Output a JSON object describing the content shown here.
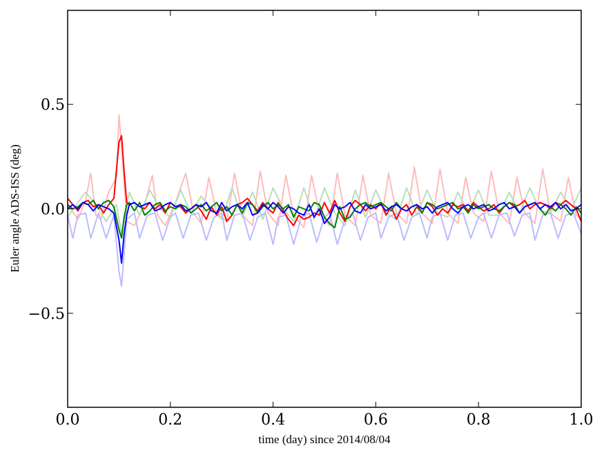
{
  "chart_data": {
    "type": "line",
    "title": "",
    "xlabel": "time (day) since 2014/08/04",
    "ylabel": "Euler angle ADS-ISS (deg)",
    "xlim": [
      0.0,
      1.0
    ],
    "ylim": [
      -0.95,
      0.95
    ],
    "grid": false,
    "legend": "none",
    "xticks": [
      0.0,
      0.2,
      0.4,
      0.6,
      0.8,
      1.0
    ],
    "xtick_labels": [
      "0.0",
      "0.2",
      "0.4",
      "0.6",
      "0.8",
      "1.0"
    ],
    "yticks": [
      0.5,
      0.0,
      -0.5
    ],
    "ytick_labels": [
      "0.5",
      "0.0",
      "−0.5"
    ],
    "series": [
      {
        "color": "#ffbbbb",
        "x": [
          0,
          0.02,
          0.035,
          0.045,
          0.055,
          0.065,
          0.08,
          0.095,
          0.1,
          0.105,
          0.115,
          0.13,
          0.15,
          0.165,
          0.175,
          0.19,
          0.21,
          0.23,
          0.245,
          0.26,
          0.275,
          0.29,
          0.31,
          0.325,
          0.34,
          0.36,
          0.375,
          0.39,
          0.41,
          0.425,
          0.44,
          0.46,
          0.475,
          0.49,
          0.51,
          0.525,
          0.54,
          0.56,
          0.575,
          0.59,
          0.61,
          0.625,
          0.64,
          0.66,
          0.675,
          0.69,
          0.71,
          0.725,
          0.74,
          0.76,
          0.775,
          0.79,
          0.81,
          0.825,
          0.84,
          0.86,
          0.875,
          0.89,
          0.91,
          0.925,
          0.94,
          0.96,
          0.975,
          0.99,
          1.0
        ],
        "y": [
          0.02,
          -0.05,
          0.04,
          0.17,
          -0.03,
          -0.05,
          0.08,
          0.15,
          0.45,
          0.3,
          -0.06,
          -0.08,
          0.02,
          0.16,
          -0.03,
          -0.08,
          0.03,
          0.17,
          -0.02,
          -0.07,
          0.15,
          -0.02,
          -0.06,
          0.17,
          -0.03,
          -0.08,
          0.18,
          -0.02,
          -0.08,
          0.16,
          -0.03,
          -0.09,
          0.16,
          -0.02,
          -0.08,
          0.17,
          -0.03,
          -0.08,
          0.16,
          -0.03,
          -0.07,
          0.17,
          -0.02,
          -0.07,
          0.2,
          -0.02,
          -0.07,
          0.19,
          -0.02,
          -0.07,
          0.15,
          -0.02,
          -0.06,
          0.18,
          -0.02,
          -0.07,
          0.15,
          -0.02,
          -0.07,
          0.19,
          -0.02,
          -0.06,
          0.15,
          -0.03,
          -0.05
        ]
      },
      {
        "color": "#bbddbb",
        "x": [
          0,
          0.02,
          0.035,
          0.055,
          0.075,
          0.095,
          0.105,
          0.12,
          0.14,
          0.16,
          0.18,
          0.2,
          0.22,
          0.24,
          0.26,
          0.28,
          0.3,
          0.32,
          0.34,
          0.36,
          0.38,
          0.4,
          0.42,
          0.44,
          0.46,
          0.48,
          0.5,
          0.52,
          0.54,
          0.56,
          0.58,
          0.6,
          0.62,
          0.64,
          0.66,
          0.68,
          0.7,
          0.72,
          0.74,
          0.76,
          0.78,
          0.8,
          0.82,
          0.84,
          0.86,
          0.88,
          0.9,
          0.92,
          0.94,
          0.96,
          0.98,
          1.0
        ],
        "y": [
          -0.04,
          0.03,
          0.08,
          0.02,
          -0.06,
          0.02,
          -0.12,
          0.08,
          -0.03,
          0.09,
          0.0,
          -0.04,
          0.09,
          -0.02,
          0.06,
          0.0,
          -0.05,
          0.1,
          -0.04,
          0.08,
          -0.05,
          0.1,
          0.0,
          -0.06,
          0.1,
          -0.05,
          0.1,
          -0.02,
          -0.08,
          0.09,
          -0.04,
          0.09,
          -0.02,
          -0.05,
          0.1,
          -0.03,
          0.09,
          -0.02,
          -0.04,
          0.08,
          -0.02,
          0.09,
          -0.03,
          -0.03,
          0.08,
          -0.02,
          0.1,
          -0.01,
          -0.02,
          0.08,
          -0.01,
          0.1
        ]
      },
      {
        "color": "#bbbbff",
        "x": [
          0,
          0.01,
          0.02,
          0.035,
          0.045,
          0.06,
          0.075,
          0.09,
          0.1,
          0.105,
          0.115,
          0.13,
          0.14,
          0.155,
          0.17,
          0.185,
          0.2,
          0.21,
          0.225,
          0.24,
          0.255,
          0.27,
          0.285,
          0.3,
          0.31,
          0.325,
          0.34,
          0.355,
          0.37,
          0.385,
          0.4,
          0.41,
          0.425,
          0.44,
          0.455,
          0.47,
          0.485,
          0.5,
          0.51,
          0.525,
          0.54,
          0.555,
          0.57,
          0.585,
          0.6,
          0.61,
          0.625,
          0.64,
          0.655,
          0.67,
          0.685,
          0.7,
          0.71,
          0.725,
          0.74,
          0.755,
          0.77,
          0.785,
          0.8,
          0.81,
          0.825,
          0.84,
          0.855,
          0.87,
          0.885,
          0.9,
          0.91,
          0.925,
          0.94,
          0.955,
          0.97,
          0.985,
          1.0
        ],
        "y": [
          -0.03,
          -0.14,
          -0.03,
          -0.02,
          -0.14,
          -0.02,
          -0.14,
          -0.03,
          -0.3,
          -0.37,
          -0.05,
          -0.02,
          -0.14,
          -0.03,
          -0.02,
          -0.15,
          -0.04,
          -0.02,
          -0.14,
          -0.03,
          -0.02,
          -0.15,
          -0.04,
          -0.02,
          -0.15,
          -0.03,
          -0.02,
          -0.15,
          -0.04,
          -0.02,
          -0.17,
          -0.04,
          -0.03,
          -0.17,
          -0.04,
          -0.02,
          -0.16,
          -0.04,
          -0.02,
          -0.17,
          -0.05,
          -0.02,
          -0.15,
          -0.04,
          -0.02,
          -0.14,
          -0.04,
          -0.02,
          -0.15,
          -0.04,
          -0.02,
          -0.14,
          -0.04,
          -0.02,
          -0.15,
          -0.03,
          -0.02,
          -0.14,
          -0.04,
          -0.02,
          -0.14,
          -0.03,
          -0.02,
          -0.13,
          -0.03,
          -0.02,
          -0.15,
          -0.03,
          -0.02,
          -0.14,
          -0.03,
          -0.02,
          -0.12
        ]
      },
      {
        "color": "#ff0000",
        "x": [
          0,
          0.01,
          0.02,
          0.03,
          0.04,
          0.05,
          0.06,
          0.07,
          0.08,
          0.09,
          0.1,
          0.105,
          0.11,
          0.115,
          0.12,
          0.13,
          0.14,
          0.15,
          0.16,
          0.17,
          0.18,
          0.19,
          0.2,
          0.21,
          0.22,
          0.23,
          0.24,
          0.25,
          0.26,
          0.27,
          0.28,
          0.29,
          0.3,
          0.31,
          0.32,
          0.33,
          0.34,
          0.35,
          0.36,
          0.37,
          0.38,
          0.39,
          0.4,
          0.41,
          0.42,
          0.43,
          0.44,
          0.45,
          0.46,
          0.47,
          0.48,
          0.49,
          0.5,
          0.51,
          0.52,
          0.53,
          0.54,
          0.55,
          0.56,
          0.57,
          0.58,
          0.59,
          0.6,
          0.61,
          0.62,
          0.63,
          0.64,
          0.65,
          0.66,
          0.67,
          0.68,
          0.69,
          0.7,
          0.71,
          0.72,
          0.73,
          0.74,
          0.75,
          0.76,
          0.77,
          0.78,
          0.79,
          0.8,
          0.81,
          0.82,
          0.83,
          0.84,
          0.85,
          0.86,
          0.87,
          0.88,
          0.89,
          0.9,
          0.91,
          0.92,
          0.93,
          0.94,
          0.95,
          0.96,
          0.97,
          0.98,
          0.99,
          1.0
        ],
        "y": [
          0.05,
          0.02,
          -0.01,
          0.03,
          0.04,
          0.01,
          0.02,
          -0.02,
          0.02,
          0.05,
          0.32,
          0.35,
          0.18,
          0.03,
          0.02,
          0.03,
          0.01,
          0.0,
          0.03,
          0.0,
          0.02,
          -0.02,
          0.03,
          0.01,
          0.01,
          -0.02,
          0.0,
          0.02,
          -0.01,
          -0.05,
          0.01,
          -0.03,
          0.01,
          -0.06,
          -0.03,
          0.02,
          0.03,
          0.05,
          0.02,
          -0.01,
          0.03,
          0.0,
          -0.02,
          0.03,
          -0.01,
          -0.05,
          -0.08,
          -0.03,
          -0.05,
          -0.04,
          -0.02,
          -0.03,
          0.03,
          -0.02,
          0.04,
          -0.02,
          -0.06,
          0.01,
          0.04,
          0.02,
          -0.01,
          0.02,
          0.0,
          0.03,
          -0.03,
          0.01,
          -0.05,
          0.0,
          0.02,
          -0.03,
          0.01,
          -0.02,
          0.03,
          0.01,
          -0.03,
          0.0,
          -0.02,
          0.02,
          0.01,
          0.02,
          -0.01,
          0.03,
          0.01,
          -0.01,
          0.0,
          0.02,
          -0.02,
          0.01,
          0.03,
          0.01,
          0.02,
          0.04,
          0.0,
          0.02,
          0.03,
          0.02,
          0.0,
          0.03,
          0.02,
          0.04,
          0.02,
          0.0,
          -0.06
        ]
      },
      {
        "color": "#008000",
        "x": [
          0,
          0.01,
          0.02,
          0.03,
          0.04,
          0.05,
          0.06,
          0.07,
          0.08,
          0.09,
          0.1,
          0.105,
          0.11,
          0.115,
          0.12,
          0.13,
          0.14,
          0.15,
          0.16,
          0.17,
          0.18,
          0.19,
          0.2,
          0.21,
          0.22,
          0.23,
          0.24,
          0.25,
          0.26,
          0.27,
          0.28,
          0.29,
          0.3,
          0.31,
          0.32,
          0.33,
          0.34,
          0.35,
          0.36,
          0.37,
          0.38,
          0.39,
          0.4,
          0.41,
          0.42,
          0.43,
          0.44,
          0.45,
          0.46,
          0.47,
          0.48,
          0.49,
          0.5,
          0.51,
          0.52,
          0.53,
          0.54,
          0.55,
          0.56,
          0.57,
          0.58,
          0.59,
          0.6,
          0.61,
          0.62,
          0.63,
          0.64,
          0.65,
          0.66,
          0.67,
          0.68,
          0.69,
          0.7,
          0.71,
          0.72,
          0.73,
          0.74,
          0.75,
          0.76,
          0.77,
          0.78,
          0.79,
          0.8,
          0.81,
          0.82,
          0.83,
          0.84,
          0.85,
          0.86,
          0.87,
          0.88,
          0.89,
          0.9,
          0.91,
          0.92,
          0.93,
          0.94,
          0.95,
          0.96,
          0.97,
          0.98,
          0.99,
          1.0
        ],
        "y": [
          0.02,
          0.0,
          0.01,
          0.03,
          0.02,
          0.04,
          0.0,
          0.03,
          0.04,
          0.01,
          -0.1,
          -0.14,
          -0.04,
          0.02,
          0.03,
          -0.01,
          0.03,
          -0.03,
          -0.01,
          0.02,
          0.03,
          -0.01,
          0.01,
          0.0,
          0.02,
          0.01,
          -0.02,
          0.0,
          0.02,
          -0.01,
          0.01,
          0.03,
          -0.01,
          0.01,
          -0.03,
          0.02,
          -0.02,
          0.03,
          0.02,
          -0.02,
          0.01,
          0.03,
          0.0,
          0.02,
          0.0,
          0.02,
          -0.04,
          0.01,
          0.0,
          -0.01,
          0.03,
          0.02,
          -0.04,
          -0.07,
          -0.09,
          0.01,
          -0.05,
          -0.04,
          0.0,
          0.02,
          0.03,
          0.01,
          0.02,
          0.03,
          0.01,
          -0.01,
          0.03,
          0.0,
          -0.01,
          0.01,
          0.02,
          -0.02,
          0.03,
          0.02,
          0.0,
          0.01,
          0.02,
          0.03,
          0.0,
          0.01,
          -0.02,
          0.02,
          0.0,
          0.01,
          0.02,
          0.0,
          -0.01,
          0.01,
          0.03,
          0.02,
          -0.02,
          0.01,
          0.02,
          0.03,
          0.0,
          -0.03,
          0.01,
          -0.01,
          0.02,
          0.0,
          -0.03,
          0.01,
          -0.02
        ]
      },
      {
        "color": "#0000ff",
        "x": [
          0,
          0.01,
          0.02,
          0.03,
          0.04,
          0.05,
          0.06,
          0.07,
          0.08,
          0.09,
          0.1,
          0.105,
          0.11,
          0.115,
          0.12,
          0.13,
          0.14,
          0.15,
          0.16,
          0.17,
          0.18,
          0.19,
          0.2,
          0.21,
          0.22,
          0.23,
          0.24,
          0.25,
          0.26,
          0.27,
          0.28,
          0.29,
          0.3,
          0.31,
          0.32,
          0.33,
          0.34,
          0.35,
          0.36,
          0.37,
          0.38,
          0.39,
          0.4,
          0.41,
          0.42,
          0.43,
          0.44,
          0.45,
          0.46,
          0.47,
          0.48,
          0.49,
          0.5,
          0.51,
          0.52,
          0.53,
          0.54,
          0.55,
          0.56,
          0.57,
          0.58,
          0.59,
          0.6,
          0.61,
          0.62,
          0.63,
          0.64,
          0.65,
          0.66,
          0.67,
          0.68,
          0.69,
          0.7,
          0.71,
          0.72,
          0.73,
          0.74,
          0.75,
          0.76,
          0.77,
          0.78,
          0.79,
          0.8,
          0.81,
          0.82,
          0.83,
          0.84,
          0.85,
          0.86,
          0.87,
          0.88,
          0.89,
          0.9,
          0.91,
          0.92,
          0.93,
          0.94,
          0.95,
          0.96,
          0.97,
          0.98,
          0.99,
          1.0
        ],
        "y": [
          0.0,
          0.02,
          0.0,
          0.03,
          0.02,
          -0.01,
          0.02,
          0.01,
          0.0,
          -0.02,
          -0.15,
          -0.26,
          -0.12,
          -0.03,
          0.02,
          0.03,
          0.01,
          0.02,
          0.03,
          -0.01,
          0.0,
          0.02,
          0.03,
          0.01,
          0.02,
          -0.01,
          0.0,
          0.02,
          0.01,
          0.03,
          -0.01,
          -0.02,
          0.03,
          -0.01,
          0.01,
          0.02,
          0.0,
          0.03,
          -0.03,
          -0.02,
          0.02,
          0.0,
          0.03,
          0.01,
          -0.02,
          0.01,
          0.0,
          -0.02,
          -0.03,
          0.02,
          -0.04,
          0.0,
          -0.07,
          -0.04,
          0.02,
          0.0,
          0.01,
          0.03,
          -0.01,
          -0.02,
          0.02,
          0.0,
          0.01,
          0.02,
          -0.01,
          0.01,
          0.02,
          0.0,
          -0.01,
          0.01,
          0.02,
          0.0,
          0.01,
          -0.02,
          0.01,
          0.02,
          0.03,
          0.0,
          -0.02,
          0.01,
          0.02,
          0.0,
          0.01,
          0.02,
          -0.01,
          0.0,
          0.02,
          0.03,
          0.0,
          0.01,
          -0.02,
          0.01,
          0.02,
          0.03,
          0.0,
          0.02,
          0.01,
          0.03,
          0.0,
          0.02,
          -0.01,
          0.0,
          0.02
        ]
      }
    ]
  }
}
